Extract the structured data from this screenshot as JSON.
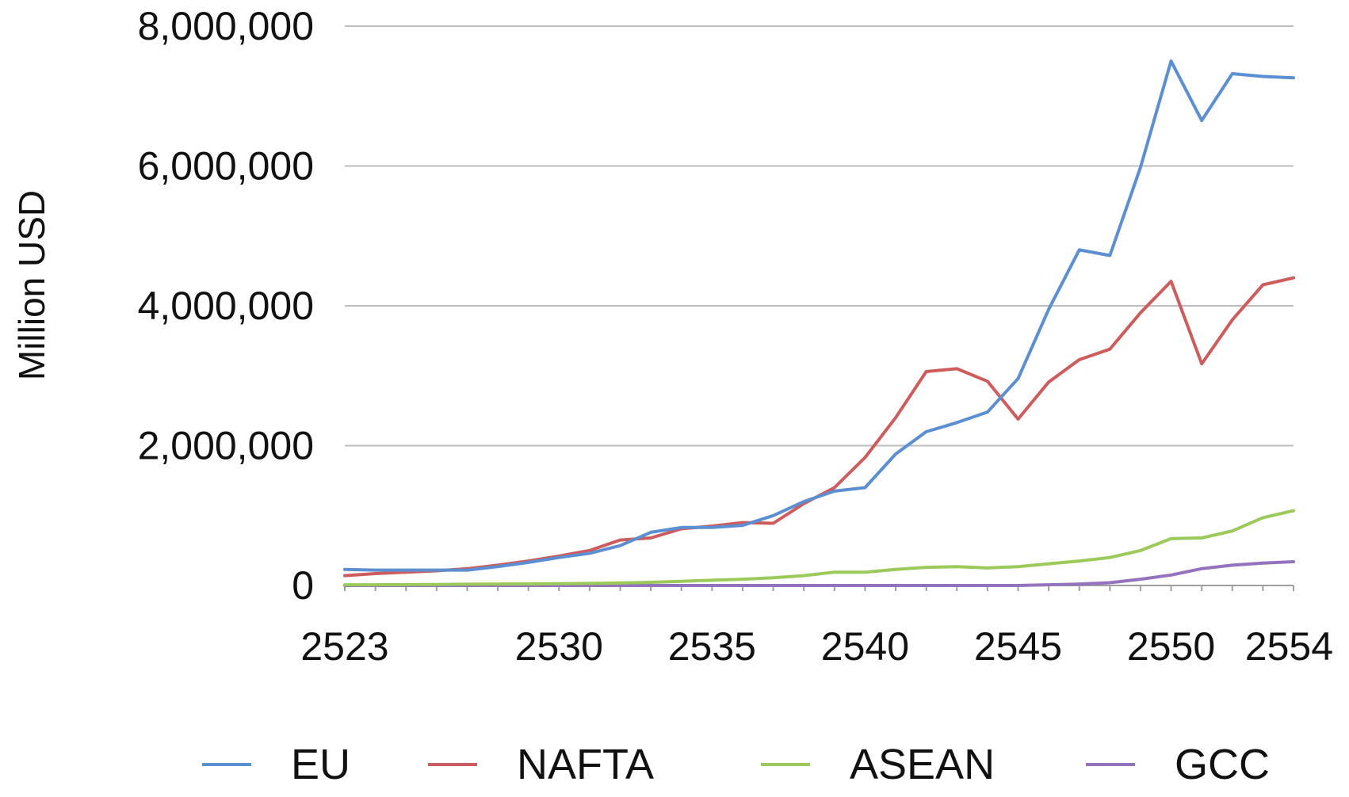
{
  "chart_data": {
    "type": "line",
    "title": "",
    "xlabel": "",
    "ylabel": "Million USD",
    "ylim": [
      0,
      8000000
    ],
    "xlim": [
      2523,
      2554
    ],
    "yticks": [
      0,
      2000000,
      4000000,
      6000000,
      8000000
    ],
    "ytick_labels": [
      "0",
      "2,000,000",
      "4,000,000",
      "6,000,000",
      "8,000,000"
    ],
    "xticks": [
      2523,
      2530,
      2535,
      2540,
      2545,
      2550,
      2554
    ],
    "xtick_labels": [
      "2523",
      "2530",
      "2535",
      "2540",
      "2545",
      "2550",
      "2554"
    ],
    "grid": true,
    "legend_position": "bottom",
    "x": [
      2523,
      2524,
      2525,
      2526,
      2527,
      2528,
      2529,
      2530,
      2531,
      2532,
      2533,
      2534,
      2535,
      2536,
      2537,
      2538,
      2539,
      2540,
      2541,
      2542,
      2543,
      2544,
      2545,
      2546,
      2547,
      2548,
      2549,
      2550,
      2551,
      2552,
      2553,
      2554
    ],
    "series": [
      {
        "name": "EU",
        "color": "#5b8fd1",
        "values": [
          230000,
          220000,
          220000,
          220000,
          220000,
          270000,
          330000,
          400000,
          460000,
          570000,
          760000,
          830000,
          830000,
          860000,
          1000000,
          1200000,
          1350000,
          1400000,
          1880000,
          2200000,
          2330000,
          2480000,
          2960000,
          3950000,
          4800000,
          4720000,
          5980000,
          7500000,
          6650000,
          7320000,
          7280000,
          7260000
        ]
      },
      {
        "name": "NAFTA",
        "color": "#cf5c5c",
        "values": [
          140000,
          170000,
          190000,
          210000,
          240000,
          290000,
          350000,
          420000,
          500000,
          650000,
          680000,
          810000,
          850000,
          900000,
          890000,
          1170000,
          1400000,
          1830000,
          2400000,
          3060000,
          3100000,
          2920000,
          2380000,
          2910000,
          3230000,
          3380000,
          3900000,
          4350000,
          3170000,
          3800000,
          4300000,
          4400000
        ]
      },
      {
        "name": "ASEAN",
        "color": "#9bc95a",
        "values": [
          10000,
          10000,
          12000,
          15000,
          18000,
          20000,
          22000,
          25000,
          30000,
          35000,
          45000,
          60000,
          75000,
          90000,
          110000,
          140000,
          190000,
          190000,
          230000,
          260000,
          270000,
          250000,
          270000,
          310000,
          350000,
          400000,
          500000,
          670000,
          680000,
          780000,
          970000,
          1070000
        ]
      },
      {
        "name": "GCC",
        "color": "#9472bd",
        "values": [
          0,
          0,
          0,
          0,
          0,
          0,
          0,
          0,
          0,
          0,
          0,
          0,
          0,
          0,
          0,
          0,
          0,
          0,
          0,
          0,
          0,
          0,
          0,
          10000,
          20000,
          40000,
          90000,
          150000,
          240000,
          290000,
          320000,
          340000
        ]
      }
    ]
  }
}
